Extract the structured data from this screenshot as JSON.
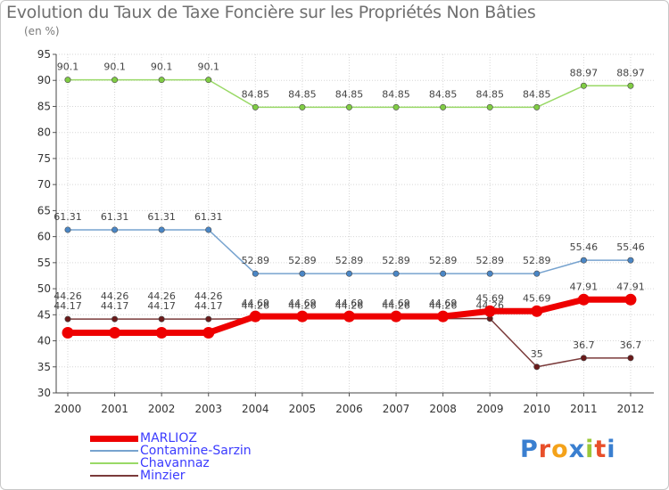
{
  "title": "Evolution du Taux de Taxe Foncière sur les Propriétés Non Bâties",
  "unit": "(en %)",
  "logo": {
    "text": "Proxiti",
    "colors": [
      "#3a7fd0",
      "#e84f2a",
      "#f4a21a",
      "#3a7fd0",
      "#9bc83a",
      "#e84f2a",
      "#3a7fd0"
    ]
  },
  "chart_data": {
    "type": "line",
    "title": "Evolution du Taux de Taxe Foncière sur les Propriétés Non Bâties",
    "ylabel": "(en %)",
    "xlabel": "",
    "ylim": [
      30,
      95
    ],
    "yticks": [
      30,
      35,
      40,
      45,
      50,
      55,
      60,
      65,
      70,
      75,
      80,
      85,
      90,
      95
    ],
    "x": [
      "2000",
      "2001",
      "2002",
      "2003",
      "2004",
      "2005",
      "2006",
      "2007",
      "2008",
      "2009",
      "2010",
      "2011",
      "2012"
    ],
    "grid": true,
    "series": [
      {
        "name": "Chavannaz",
        "color": "#99d966",
        "dot": "#80cc44",
        "width": 1.5,
        "values": [
          90.1,
          90.1,
          90.1,
          90.1,
          84.85,
          84.85,
          84.85,
          84.85,
          84.85,
          84.85,
          84.85,
          88.97,
          88.97
        ],
        "labels": [
          "90.1",
          "90.1",
          "90.1",
          "90.1",
          "84.85",
          "84.85",
          "84.85",
          "84.85",
          "84.85",
          "84.85",
          "84.85",
          "88.97",
          "88.97"
        ]
      },
      {
        "name": "Contamine-Sarzin",
        "color": "#77a3cf",
        "dot": "#4a86c5",
        "width": 1.5,
        "values": [
          61.31,
          61.31,
          61.31,
          61.31,
          52.89,
          52.89,
          52.89,
          52.89,
          52.89,
          52.89,
          52.89,
          55.46,
          55.46
        ],
        "labels": [
          "61.31",
          "61.31",
          "61.31",
          "61.31",
          "52.89",
          "52.89",
          "52.89",
          "52.89",
          "52.89",
          "52.89",
          "52.89",
          "55.46",
          "55.46"
        ]
      },
      {
        "name": "Minzier",
        "color": "#7a3a3a",
        "dot": "#6a1a1a",
        "width": 1.5,
        "values": [
          44.17,
          44.17,
          44.17,
          44.17,
          44.26,
          44.26,
          44.26,
          44.26,
          44.26,
          44.26,
          35,
          36.7,
          36.7
        ],
        "labels": [
          "44.17",
          "44.17",
          "44.17",
          "44.17",
          "44.26",
          "44.26",
          "44.26",
          "44.26",
          "44.26",
          "44.26",
          "35",
          "36.7",
          "36.7"
        ]
      },
      {
        "name": "MARLIOZ",
        "color": "#ee0000",
        "dot": "#ee0000",
        "width": 7,
        "values": [
          41.55,
          41.55,
          41.55,
          41.55,
          44.69,
          44.69,
          44.69,
          44.69,
          44.69,
          45.69,
          45.69,
          47.91,
          47.91
        ],
        "labels": [
          "",
          "",
          "",
          "",
          "44.69",
          "44.69",
          "44.69",
          "44.69",
          "44.69",
          "45.69",
          "45.69",
          "47.91",
          "47.91"
        ]
      }
    ],
    "extra_labels": {
      "series": "Contamine-Sarzin-overlay",
      "texts": [
        "44.26",
        "44.26",
        "44.26",
        "44.26"
      ]
    },
    "legend": [
      "MARLIOZ",
      "Contamine-Sarzin",
      "Chavannaz",
      "Minzier"
    ]
  }
}
